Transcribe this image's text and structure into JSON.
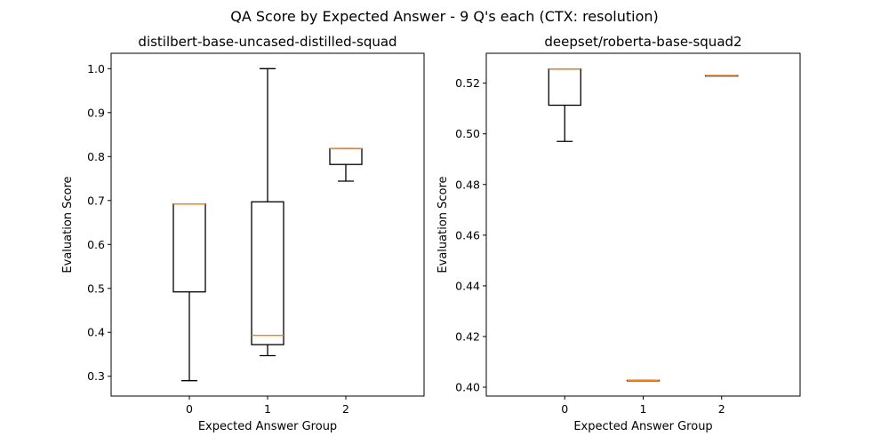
{
  "figure": {
    "title": "QA Score by Expected Answer - 9 Q's each (CTX: resolution)"
  },
  "colors": {
    "box": "#000000",
    "median": "#ff7f0e",
    "background": "#ffffff"
  },
  "chart_data": [
    {
      "type": "boxplot",
      "title": "distilbert-base-uncased-distilled-squad",
      "xlabel": "Expected Answer Group",
      "ylabel": "Evaluation Score",
      "categories": [
        "0",
        "1",
        "2"
      ],
      "ylim": [
        0.255,
        1.035
      ],
      "yticks": [
        0.3,
        0.4,
        0.5,
        0.6,
        0.7,
        0.8,
        0.9,
        1.0
      ],
      "ytick_labels": [
        "0.3",
        "0.4",
        "0.5",
        "0.6",
        "0.7",
        "0.8",
        "0.9",
        "1.0"
      ],
      "boxes": [
        {
          "min": 0.29,
          "q1": 0.492,
          "median": 0.692,
          "q3": 0.692,
          "max": 0.692
        },
        {
          "min": 0.347,
          "q1": 0.372,
          "median": 0.393,
          "q3": 0.697,
          "max": 1.0
        },
        {
          "min": 0.744,
          "q1": 0.782,
          "median": 0.818,
          "q3": 0.818,
          "max": 0.818
        }
      ]
    },
    {
      "type": "boxplot",
      "title": "deepset/roberta-base-squad2",
      "xlabel": "Expected Answer Group",
      "ylabel": "Evaluation Score",
      "categories": [
        "0",
        "1",
        "2"
      ],
      "ylim": [
        0.3965,
        0.5318
      ],
      "yticks": [
        0.4,
        0.42,
        0.44,
        0.46,
        0.48,
        0.5,
        0.52
      ],
      "ytick_labels": [
        "0.40",
        "0.42",
        "0.44",
        "0.46",
        "0.48",
        "0.50",
        "0.52"
      ],
      "boxes": [
        {
          "min": 0.497,
          "q1": 0.5113,
          "median": 0.5256,
          "q3": 0.5256,
          "max": 0.5256
        },
        {
          "min": 0.4027,
          "q1": 0.4027,
          "median": 0.4027,
          "q3": 0.4027,
          "max": 0.4027
        },
        {
          "min": 0.523,
          "q1": 0.523,
          "median": 0.523,
          "q3": 0.523,
          "max": 0.523
        }
      ]
    }
  ]
}
